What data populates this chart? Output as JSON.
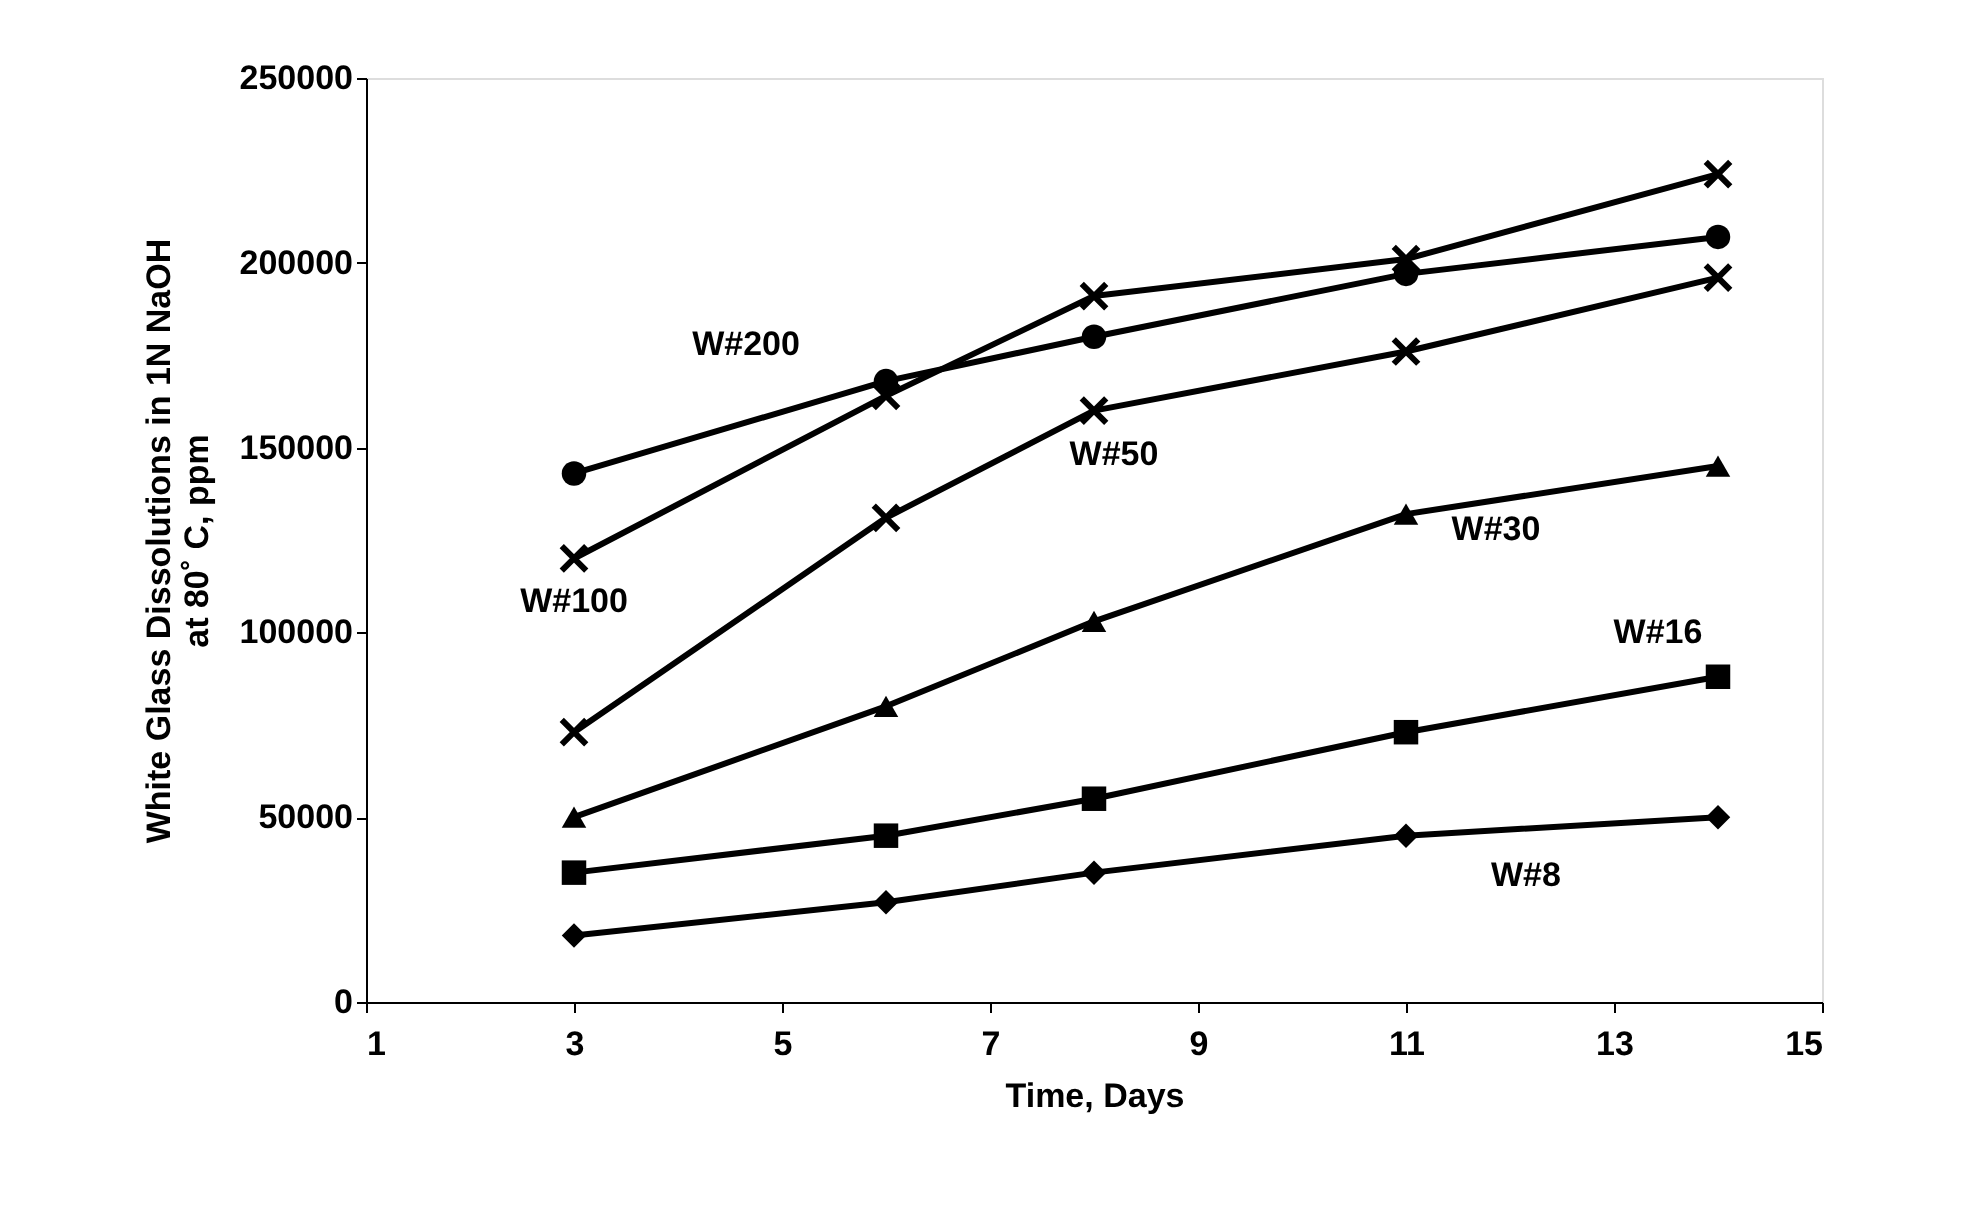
{
  "chart_data": {
    "type": "line",
    "xlabel": "Time, Days",
    "ylabel": [
      "White Glass Dissolutions in 1N NaOH",
      "at 80˚ C, ppm"
    ],
    "x": [
      3,
      6,
      8,
      11,
      14
    ],
    "xlim": [
      1,
      15
    ],
    "xticks": [
      1,
      3,
      5,
      7,
      9,
      11,
      13,
      15
    ],
    "ylim": [
      0,
      250000
    ],
    "yticks": [
      0,
      50000,
      100000,
      150000,
      200000,
      250000
    ],
    "grid": false,
    "line_style": "solid",
    "series": [
      {
        "name": "W#200",
        "color": "#000000",
        "marker": "circle",
        "values": [
          143000,
          168000,
          180000,
          197000,
          207000
        ]
      },
      {
        "name": "W#100",
        "color": "#000000",
        "marker": "cross",
        "values": [
          120000,
          164000,
          191000,
          201000,
          224000
        ]
      },
      {
        "name": "W#50",
        "color": "#000000",
        "marker": "cross",
        "values": [
          73000,
          131000,
          160000,
          176000,
          196000
        ]
      },
      {
        "name": "W#30",
        "color": "#000000",
        "marker": "triangle",
        "values": [
          50000,
          80000,
          103000,
          132000,
          145000
        ]
      },
      {
        "name": "W#16",
        "color": "#000000",
        "marker": "square",
        "values": [
          35000,
          45000,
          55000,
          73000,
          88000
        ]
      },
      {
        "name": "W#8",
        "color": "#000000",
        "marker": "diamond",
        "values": [
          18000,
          27000,
          35000,
          45000,
          50000
        ]
      }
    ]
  }
}
